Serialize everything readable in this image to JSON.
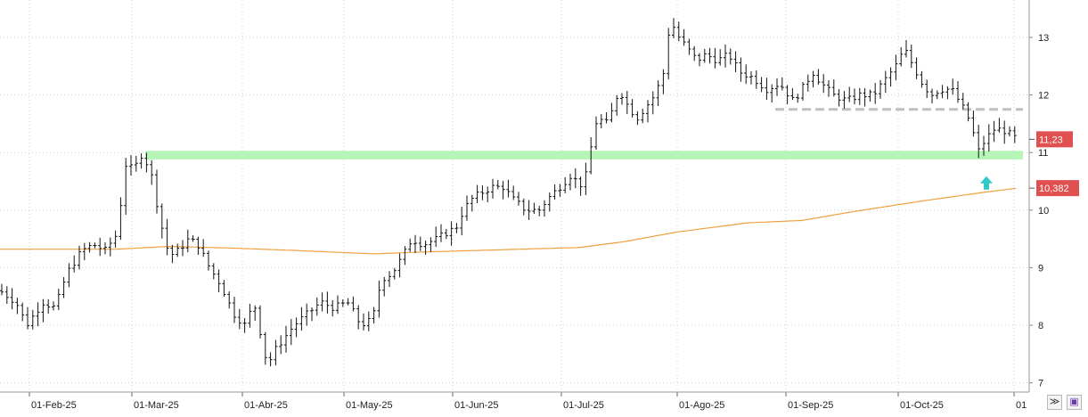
{
  "chart_data": {
    "type": "ohlc",
    "x_ticks": [
      "01-Feb-25",
      "01-Mar-25",
      "01-Abr-25",
      "01-May-25",
      "01-Jun-25",
      "01-Jul-25",
      "01-Ago-25",
      "01-Sep-25",
      "01-Oct-25",
      "01"
    ],
    "y_ticks": [
      "7",
      "8",
      "9",
      "10",
      "11",
      "12",
      "13"
    ],
    "ylim": [
      6.8,
      13.6
    ],
    "grid": true,
    "price_label": "11,23",
    "price_value": 11.23,
    "ma_label": "10,382",
    "ma_value": 10.382,
    "support_zone": [
      10.88,
      11.03
    ],
    "resistance_line": 11.75,
    "colors": {
      "price_tag": "#e05050",
      "ma_line": "#f0a040",
      "support": "#b6f5b6",
      "resistance": "#c0c0c0",
      "arrow": "#30c8c8"
    },
    "icons": {
      "arrow": "up-arrow-icon",
      "btn1": "double-chevron-down-icon",
      "btn2": "save-icon"
    },
    "close_anchors": [
      [
        0,
        8.6
      ],
      [
        18,
        8.4
      ],
      [
        30,
        8.0
      ],
      [
        48,
        8.4
      ],
      [
        62,
        8.3
      ],
      [
        75,
        8.9
      ],
      [
        92,
        9.3
      ],
      [
        105,
        9.4
      ],
      [
        118,
        9.3
      ],
      [
        132,
        9.6
      ],
      [
        140,
        10.8
      ],
      [
        150,
        10.7
      ],
      [
        160,
        11.0
      ],
      [
        170,
        10.6
      ],
      [
        180,
        9.8
      ],
      [
        190,
        9.2
      ],
      [
        200,
        9.3
      ],
      [
        212,
        9.5
      ],
      [
        222,
        9.4
      ],
      [
        235,
        9.0
      ],
      [
        248,
        8.7
      ],
      [
        262,
        8.2
      ],
      [
        275,
        8.0
      ],
      [
        285,
        8.4
      ],
      [
        300,
        7.3
      ],
      [
        310,
        7.6
      ],
      [
        320,
        7.8
      ],
      [
        330,
        8.0
      ],
      [
        345,
        8.2
      ],
      [
        360,
        8.4
      ],
      [
        375,
        8.3
      ],
      [
        390,
        8.4
      ],
      [
        405,
        8.0
      ],
      [
        418,
        8.1
      ],
      [
        428,
        8.8
      ],
      [
        440,
        8.9
      ],
      [
        452,
        9.2
      ],
      [
        462,
        9.5
      ],
      [
        475,
        9.4
      ],
      [
        490,
        9.5
      ],
      [
        500,
        9.6
      ],
      [
        512,
        9.7
      ],
      [
        520,
        10.0
      ],
      [
        530,
        10.2
      ],
      [
        540,
        10.3
      ],
      [
        552,
        10.4
      ],
      [
        565,
        10.4
      ],
      [
        575,
        10.2
      ],
      [
        590,
        10.0
      ],
      [
        605,
        10.0
      ],
      [
        615,
        10.2
      ],
      [
        628,
        10.4
      ],
      [
        640,
        10.6
      ],
      [
        655,
        10.4
      ],
      [
        662,
        11.0
      ],
      [
        670,
        11.6
      ],
      [
        682,
        11.5
      ],
      [
        695,
        12.1
      ],
      [
        705,
        11.8
      ],
      [
        715,
        11.6
      ],
      [
        725,
        11.8
      ],
      [
        735,
        12.0
      ],
      [
        745,
        12.4
      ],
      [
        752,
        13.3
      ],
      [
        762,
        13.0
      ],
      [
        772,
        12.8
      ],
      [
        782,
        12.6
      ],
      [
        792,
        12.7
      ],
      [
        805,
        12.6
      ],
      [
        818,
        12.7
      ],
      [
        830,
        12.4
      ],
      [
        845,
        12.3
      ],
      [
        860,
        12.1
      ],
      [
        875,
        12.2
      ],
      [
        890,
        11.9
      ],
      [
        900,
        12.1
      ],
      [
        912,
        12.4
      ],
      [
        922,
        12.2
      ],
      [
        935,
        12.0
      ],
      [
        950,
        11.9
      ],
      [
        965,
        12.0
      ],
      [
        980,
        12.0
      ],
      [
        995,
        12.3
      ],
      [
        1005,
        12.5
      ],
      [
        1015,
        12.8
      ],
      [
        1025,
        12.5
      ],
      [
        1035,
        12.2
      ],
      [
        1045,
        12.0
      ],
      [
        1055,
        12.1
      ],
      [
        1068,
        12.1
      ],
      [
        1080,
        11.8
      ],
      [
        1090,
        11.5
      ],
      [
        1097,
        11.0
      ],
      [
        1105,
        11.2
      ],
      [
        1115,
        11.4
      ],
      [
        1125,
        11.4
      ],
      [
        1135,
        11.3
      ],
      [
        1142,
        11.23
      ]
    ],
    "ma_anchors": [
      [
        0,
        9.32
      ],
      [
        130,
        9.32
      ],
      [
        190,
        9.37
      ],
      [
        260,
        9.34
      ],
      [
        330,
        9.3
      ],
      [
        420,
        9.24
      ],
      [
        470,
        9.27
      ],
      [
        560,
        9.31
      ],
      [
        650,
        9.35
      ],
      [
        700,
        9.45
      ],
      [
        760,
        9.62
      ],
      [
        840,
        9.78
      ],
      [
        900,
        9.82
      ],
      [
        960,
        9.98
      ],
      [
        1040,
        10.17
      ],
      [
        1100,
        10.3
      ],
      [
        1140,
        10.38
      ]
    ]
  }
}
